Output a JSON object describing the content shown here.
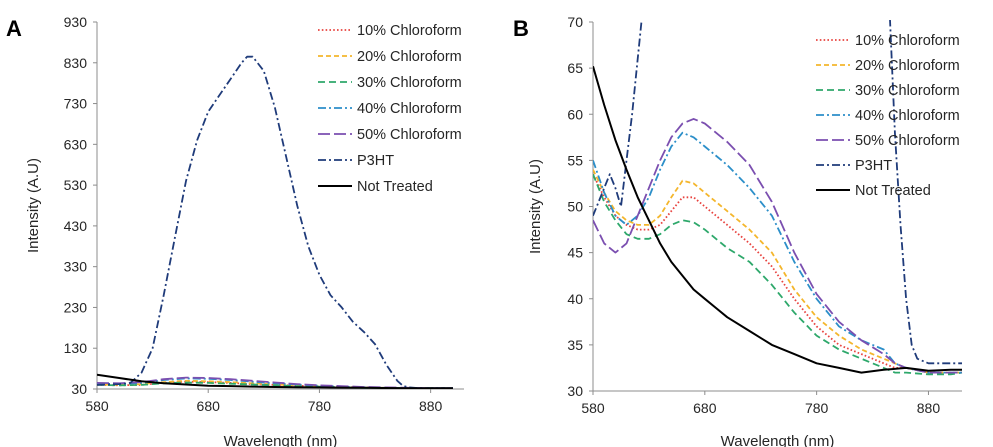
{
  "chart_data": [
    {
      "type": "line",
      "panel_label": "A",
      "xlabel": "Wavelength (nm)",
      "ylabel": "Intensity (A.U)",
      "xlim": [
        580,
        910
      ],
      "ylim": [
        30,
        930
      ],
      "xticks": [
        580,
        680,
        780,
        880
      ],
      "yticks": [
        30,
        130,
        230,
        330,
        430,
        530,
        630,
        730,
        830,
        930
      ],
      "grid": false,
      "legend_position": "top-right",
      "series": [
        {
          "name": "10% Chloroform",
          "color": "#e8433f",
          "dash": "dotted",
          "x": [
            580,
            600,
            620,
            640,
            660,
            680,
            700,
            720,
            740,
            760,
            780,
            800,
            820,
            840,
            860,
            880,
            900
          ],
          "y": [
            40,
            39,
            40,
            45,
            48,
            47,
            45,
            42,
            40,
            38,
            36,
            35,
            34,
            33,
            32,
            32,
            32
          ]
        },
        {
          "name": "20% Chloroform",
          "color": "#f4b62c",
          "dash": "dashed",
          "x": [
            580,
            600,
            620,
            640,
            660,
            680,
            700,
            720,
            740,
            760,
            780,
            800,
            820,
            840,
            860,
            880,
            900
          ],
          "y": [
            41,
            40,
            42,
            47,
            50,
            49,
            47,
            44,
            41,
            39,
            37,
            35,
            34,
            33,
            32,
            32,
            32
          ]
        },
        {
          "name": "30% Chloroform",
          "color": "#2ea86b",
          "dash": "dashed-long",
          "x": [
            580,
            600,
            620,
            640,
            660,
            680,
            700,
            720,
            740,
            760,
            780,
            800,
            820,
            840,
            860,
            880,
            900
          ],
          "y": [
            40,
            39,
            40,
            44,
            46,
            45,
            43,
            41,
            39,
            37,
            36,
            34,
            33,
            33,
            32,
            32,
            32
          ]
        },
        {
          "name": "40% Chloroform",
          "color": "#2c8fc9",
          "dash": "dash-dot",
          "x": [
            580,
            600,
            620,
            640,
            660,
            680,
            700,
            720,
            740,
            760,
            780,
            800,
            820,
            840,
            860,
            880,
            900
          ],
          "y": [
            43,
            42,
            45,
            52,
            56,
            55,
            52,
            48,
            44,
            41,
            38,
            36,
            34,
            33,
            32,
            32,
            32
          ]
        },
        {
          "name": "50% Chloroform",
          "color": "#7b4fb0",
          "dash": "long-dash",
          "x": [
            580,
            600,
            620,
            640,
            660,
            680,
            700,
            720,
            740,
            760,
            780,
            800,
            820,
            840,
            860,
            880,
            900
          ],
          "y": [
            45,
            44,
            47,
            54,
            58,
            57,
            54,
            50,
            46,
            42,
            39,
            37,
            35,
            34,
            33,
            32,
            32
          ]
        },
        {
          "name": "P3HT",
          "color": "#1f3b7a",
          "dash": "dash-dot",
          "x": [
            580,
            600,
            610,
            620,
            630,
            640,
            650,
            660,
            670,
            680,
            690,
            700,
            710,
            715,
            720,
            730,
            740,
            750,
            760,
            770,
            780,
            790,
            800,
            810,
            820,
            830,
            840,
            850,
            855,
            860,
            870,
            880,
            900
          ],
          "y": [
            40,
            42,
            45,
            70,
            130,
            260,
            400,
            540,
            640,
            710,
            750,
            790,
            830,
            845,
            845,
            810,
            720,
            600,
            480,
            380,
            310,
            260,
            230,
            195,
            170,
            140,
            90,
            50,
            38,
            34,
            32,
            32,
            32
          ]
        },
        {
          "name": "Not Treated",
          "color": "#000000",
          "dash": "solid",
          "x": [
            580,
            600,
            620,
            640,
            660,
            680,
            700,
            720,
            740,
            760,
            780,
            800,
            820,
            840,
            860,
            880,
            900
          ],
          "y": [
            65,
            57,
            49,
            44,
            41,
            38,
            37,
            36,
            35,
            34.5,
            34,
            33.5,
            33,
            32.5,
            32,
            32,
            32
          ]
        }
      ]
    },
    {
      "type": "line",
      "panel_label": "B",
      "xlabel": "Wavelength (nm)",
      "ylabel": "Intensity (A.U)",
      "xlim": [
        580,
        910
      ],
      "ylim": [
        30,
        70
      ],
      "xticks": [
        580,
        680,
        780,
        880
      ],
      "yticks": [
        30,
        35,
        40,
        45,
        50,
        55,
        60,
        65,
        70
      ],
      "grid": false,
      "legend_position": "top-right",
      "series": [
        {
          "name": "10% Chloroform",
          "color": "#e8433f",
          "dash": "dotted",
          "x": [
            580,
            590,
            600,
            610,
            620,
            630,
            640,
            650,
            660,
            670,
            680,
            700,
            720,
            740,
            760,
            780,
            800,
            820,
            840,
            850,
            860,
            880,
            900,
            910
          ],
          "y": [
            53.5,
            51,
            49,
            48,
            47.5,
            47.5,
            48,
            49.5,
            51,
            51,
            50,
            48,
            46,
            43.5,
            40,
            37,
            35,
            34,
            33,
            32.5,
            32.5,
            32,
            32,
            32
          ]
        },
        {
          "name": "20% Chloroform",
          "color": "#f4b62c",
          "dash": "dashed",
          "x": [
            580,
            590,
            600,
            610,
            620,
            630,
            640,
            650,
            660,
            670,
            680,
            700,
            720,
            740,
            760,
            780,
            800,
            820,
            840,
            850,
            860,
            880,
            900,
            910
          ],
          "y": [
            54,
            51.5,
            49.5,
            48.5,
            48,
            48,
            49,
            51,
            52.8,
            52.5,
            51.5,
            49.5,
            47.5,
            45,
            41,
            38,
            36,
            34.5,
            33.5,
            33,
            32.5,
            32,
            32,
            32
          ]
        },
        {
          "name": "30% Chloroform",
          "color": "#2ea86b",
          "dash": "dashed-long",
          "x": [
            580,
            590,
            600,
            610,
            620,
            630,
            640,
            650,
            660,
            670,
            680,
            700,
            720,
            740,
            760,
            780,
            800,
            820,
            840,
            850,
            860,
            880,
            900,
            910
          ],
          "y": [
            53.5,
            50.5,
            48.5,
            47,
            46.5,
            46.5,
            47,
            48,
            48.5,
            48.3,
            47.5,
            45.5,
            44,
            41.5,
            38.5,
            36,
            34.5,
            33.5,
            32.5,
            32,
            32,
            31.8,
            31.8,
            32
          ]
        },
        {
          "name": "40% Chloroform",
          "color": "#2c8fc9",
          "dash": "dash-dot",
          "x": [
            580,
            590,
            600,
            610,
            620,
            630,
            640,
            650,
            660,
            670,
            680,
            700,
            720,
            740,
            760,
            780,
            800,
            820,
            840,
            850,
            860,
            880,
            900,
            910
          ],
          "y": [
            55,
            51.5,
            49,
            48,
            49,
            51,
            54,
            56.5,
            58,
            57.5,
            56.5,
            54.5,
            52,
            49,
            44,
            40,
            37,
            35.5,
            34.5,
            33,
            32.5,
            32,
            32,
            32
          ]
        },
        {
          "name": "50% Chloroform",
          "color": "#7b4fb0",
          "dash": "long-dash",
          "x": [
            580,
            590,
            600,
            605,
            610,
            620,
            630,
            640,
            650,
            660,
            670,
            680,
            700,
            720,
            740,
            760,
            780,
            800,
            820,
            840,
            850,
            860,
            880,
            900,
            910
          ],
          "y": [
            48.5,
            46,
            45,
            45.5,
            46,
            49,
            52,
            55,
            57.5,
            59,
            59.5,
            59,
            57,
            54.5,
            50.5,
            45,
            40.5,
            37.5,
            35.5,
            34,
            33,
            32.5,
            32,
            32,
            32
          ]
        },
        {
          "name": "P3HT",
          "color": "#1f3b7a",
          "dash": "dash-dot",
          "x": [
            580,
            585,
            590,
            595,
            600,
            605,
            610,
            615,
            620,
            625,
            845,
            850,
            855,
            860,
            865,
            870,
            880,
            900,
            910
          ],
          "y": [
            49,
            50.5,
            52,
            53.5,
            52,
            50,
            55,
            60,
            66,
            72,
            72,
            58,
            48,
            40,
            35,
            33.5,
            33,
            33,
            33
          ]
        },
        {
          "name": "Not Treated",
          "color": "#000000",
          "dash": "solid",
          "x": [
            580,
            590,
            600,
            610,
            620,
            630,
            640,
            650,
            660,
            670,
            680,
            690,
            700,
            720,
            740,
            760,
            780,
            800,
            820,
            840,
            860,
            880,
            900,
            910
          ],
          "y": [
            65.2,
            61,
            57.2,
            54,
            51,
            48.5,
            46,
            44,
            42.5,
            41,
            40,
            39,
            38,
            36.5,
            35,
            34,
            33,
            32.5,
            32,
            32.3,
            32.5,
            32.2,
            32.3,
            32.3
          ]
        }
      ]
    }
  ]
}
